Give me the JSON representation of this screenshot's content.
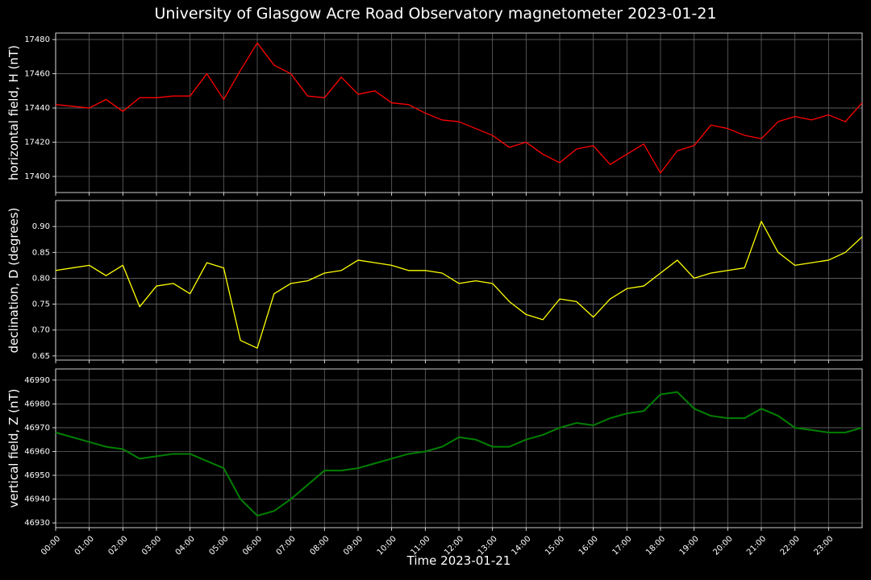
{
  "title": "University of Glasgow Acre Road Observatory magnetometer 2023-01-21",
  "x_label": "Time 2023-01-21",
  "chart_data": [
    {
      "type": "line",
      "y_label": "horizontal field, H (nT)",
      "color": "#ff0000",
      "grid": true,
      "x": [
        0,
        0.5,
        1,
        1.5,
        2,
        2.5,
        3,
        3.5,
        4,
        4.5,
        5,
        5.5,
        6,
        6.5,
        7,
        7.5,
        8,
        8.5,
        9,
        9.5,
        10,
        10.5,
        11,
        11.5,
        12,
        12.5,
        13,
        13.5,
        14,
        14.5,
        15,
        15.5,
        16,
        16.5,
        17,
        17.5,
        18,
        18.5,
        19,
        19.5,
        20,
        20.5,
        21,
        21.5,
        22,
        22.5,
        23,
        23.5,
        24
      ],
      "values": [
        17442,
        17441,
        17440,
        17445,
        17438,
        17446,
        17446,
        17447,
        17447,
        17460,
        17445,
        17462,
        17478,
        17465,
        17460,
        17447,
        17446,
        17458,
        17448,
        17450,
        17443,
        17442,
        17437,
        17433,
        17432,
        17428,
        17424,
        17417,
        17420,
        17413,
        17408,
        17416,
        17418,
        17407,
        17413,
        17419,
        17402,
        17415,
        17418,
        17430,
        17428,
        17424,
        17422,
        17432,
        17435,
        17433,
        17436,
        17432,
        17443
      ],
      "xlim": [
        0,
        24
      ],
      "ylim": [
        17390.6,
        17483.8
      ],
      "yticks": [
        17400,
        17420,
        17440,
        17460,
        17480
      ]
    },
    {
      "type": "line",
      "y_label": "declination, D (degrees)",
      "color": "#ffff00",
      "grid": true,
      "x": [
        0,
        0.5,
        1,
        1.5,
        2,
        2.5,
        3,
        3.5,
        4,
        4.5,
        5,
        5.5,
        6,
        6.5,
        7,
        7.5,
        8,
        8.5,
        9,
        9.5,
        10,
        10.5,
        11,
        11.5,
        12,
        12.5,
        13,
        13.5,
        14,
        14.5,
        15,
        15.5,
        16,
        16.5,
        17,
        17.5,
        18,
        18.5,
        19,
        19.5,
        20,
        20.5,
        21,
        21.5,
        22,
        22.5,
        23,
        23.5,
        24
      ],
      "values": [
        0.815,
        0.82,
        0.825,
        0.805,
        0.825,
        0.745,
        0.785,
        0.79,
        0.77,
        0.83,
        0.82,
        0.68,
        0.665,
        0.77,
        0.79,
        0.795,
        0.81,
        0.815,
        0.835,
        0.83,
        0.825,
        0.815,
        0.815,
        0.81,
        0.79,
        0.795,
        0.79,
        0.755,
        0.73,
        0.72,
        0.76,
        0.755,
        0.725,
        0.76,
        0.78,
        0.785,
        0.81,
        0.835,
        0.8,
        0.81,
        0.815,
        0.82,
        0.91,
        0.85,
        0.825,
        0.83,
        0.835,
        0.85,
        0.88
      ],
      "xlim": [
        0,
        24
      ],
      "ylim": [
        0.642,
        0.95
      ],
      "yticks": [
        0.65,
        {
          "value": 0.7,
          "label": "0.70"
        },
        0.75,
        {
          "value": 0.8,
          "label": "0.80"
        },
        0.85,
        {
          "value": 0.9,
          "label": "0.90"
        }
      ]
    },
    {
      "type": "line",
      "y_label": "vertical field, Z (nT)",
      "color": "#008000",
      "grid": true,
      "x": [
        0,
        0.5,
        1,
        1.5,
        2,
        2.5,
        3,
        3.5,
        4,
        4.5,
        5,
        5.5,
        6,
        6.5,
        7,
        7.5,
        8,
        8.5,
        9,
        9.5,
        10,
        10.5,
        11,
        11.5,
        12,
        12.5,
        13,
        13.5,
        14,
        14.5,
        15,
        15.5,
        16,
        16.5,
        17,
        17.5,
        18,
        18.5,
        19,
        19.5,
        20,
        20.5,
        21,
        21.5,
        22,
        22.5,
        23,
        23.5,
        24
      ],
      "values": [
        46968,
        46966,
        46964,
        46962,
        46961,
        46957,
        46958,
        46959,
        46959,
        46956,
        46953,
        46940,
        46933,
        46935,
        46940,
        46946,
        46952,
        46952,
        46953,
        46955,
        46957,
        46959,
        46960,
        46962,
        46966,
        46965,
        46962,
        46962,
        46965,
        46967,
        46970,
        46972,
        46971,
        46974,
        46976,
        46977,
        46984,
        46985,
        46978,
        46975,
        46974,
        46974,
        46978,
        46975,
        46970,
        46969,
        46968,
        46968,
        46970
      ],
      "xlim": [
        0,
        24
      ],
      "ylim": [
        46928,
        46994.7
      ],
      "yticks": [
        46930,
        46940,
        46950,
        46960,
        46970,
        46980,
        46990
      ],
      "xticks": [
        {
          "value": 0,
          "label": "00:00"
        },
        {
          "value": 1,
          "label": "01:00"
        },
        {
          "value": 2,
          "label": "02:00"
        },
        {
          "value": 3,
          "label": "03:00"
        },
        {
          "value": 4,
          "label": "04:00"
        },
        {
          "value": 5,
          "label": "05:00"
        },
        {
          "value": 6,
          "label": "06:00"
        },
        {
          "value": 7,
          "label": "07:00"
        },
        {
          "value": 8,
          "label": "08:00"
        },
        {
          "value": 9,
          "label": "09:00"
        },
        {
          "value": 10,
          "label": "10:00"
        },
        {
          "value": 11,
          "label": "11:00"
        },
        {
          "value": 12,
          "label": "12:00"
        },
        {
          "value": 13,
          "label": "13:00"
        },
        {
          "value": 14,
          "label": "14:00"
        },
        {
          "value": 15,
          "label": "15:00"
        },
        {
          "value": 16,
          "label": "16:00"
        },
        {
          "value": 17,
          "label": "17:00"
        },
        {
          "value": 18,
          "label": "18:00"
        },
        {
          "value": 19,
          "label": "19:00"
        },
        {
          "value": 20,
          "label": "20:00"
        },
        {
          "value": 21,
          "label": "21:00"
        },
        {
          "value": 22,
          "label": "22:00"
        },
        {
          "value": 23,
          "label": "23:00"
        }
      ]
    }
  ]
}
